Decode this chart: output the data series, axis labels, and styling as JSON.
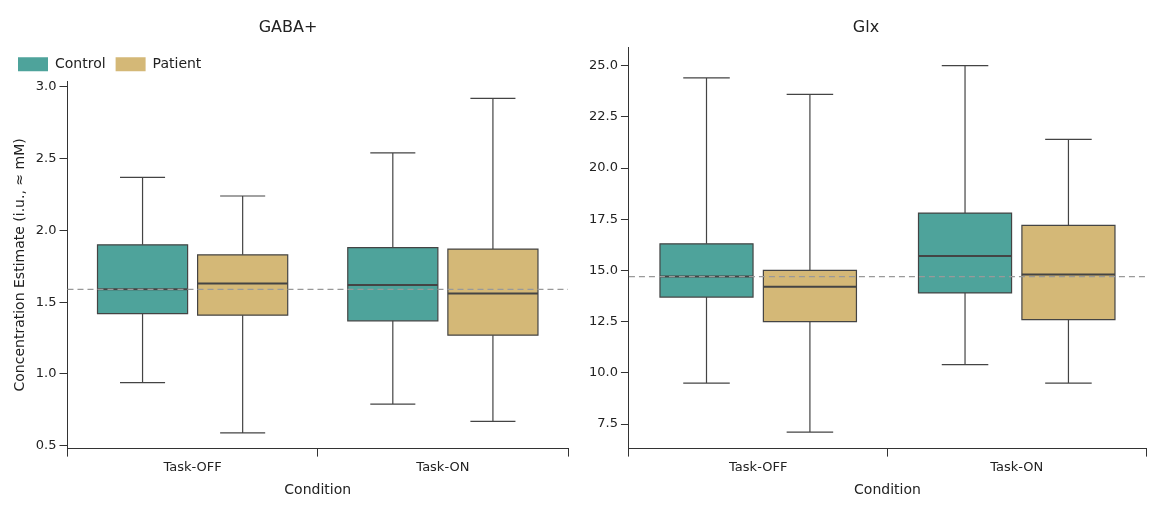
{
  "chart_data": [
    {
      "type": "box",
      "title": "GABA+",
      "xlabel": "Condition",
      "ylabel": "Concentration Estimate (i.u., ≈ mM)",
      "categories": [
        "Task-OFF",
        "Task-ON"
      ],
      "legend": "top left",
      "grid": false,
      "ylim": [
        0.48,
        3.04
      ],
      "yticks": [
        {
          "value": 0.5,
          "label": "0.5"
        },
        {
          "value": 1,
          "label": "1.0"
        },
        {
          "value": 1.5,
          "label": "1.5"
        },
        {
          "value": 2,
          "label": "2.0"
        },
        {
          "value": 2.5,
          "label": "2.5"
        },
        {
          "value": 3,
          "label": "3.0"
        }
      ],
      "series": [
        {
          "name": "Control",
          "color": "#4ea39b",
          "boxes": [
            {
              "low": 0.94,
              "q1": 1.42,
              "median": 1.59,
              "q3": 1.9,
              "high": 2.37
            },
            {
              "low": 0.79,
              "q1": 1.37,
              "median": 1.62,
              "q3": 1.88,
              "high": 2.54
            }
          ]
        },
        {
          "name": "Patient",
          "color": "#d4b877",
          "boxes": [
            {
              "low": 0.59,
              "q1": 1.41,
              "median": 1.63,
              "q3": 1.83,
              "high": 2.24
            },
            {
              "low": 0.67,
              "q1": 1.27,
              "median": 1.56,
              "q3": 1.87,
              "high": 2.92
            }
          ]
        }
      ],
      "ref_lines": [
        {
          "axis": "y",
          "value": 1.59,
          "color": "#999999",
          "line_style": "dashed"
        }
      ]
    },
    {
      "type": "box",
      "title": "Glx",
      "xlabel": "Condition",
      "categories": [
        "Task-OFF",
        "Task-ON"
      ],
      "grid": false,
      "ylim": [
        6.3,
        25.9
      ],
      "yticks": [
        {
          "value": 7.5,
          "label": "7.5"
        },
        {
          "value": 10,
          "label": "10.0"
        },
        {
          "value": 12.5,
          "label": "12.5"
        },
        {
          "value": 15,
          "label": "15.0"
        },
        {
          "value": 17.5,
          "label": "17.5"
        },
        {
          "value": 20,
          "label": "20.0"
        },
        {
          "value": 22.5,
          "label": "22.5"
        },
        {
          "value": 25,
          "label": "25.0"
        }
      ],
      "series": [
        {
          "color": "#4ea39b",
          "boxes": [
            {
              "low": 9.5,
              "q1": 13.7,
              "median": 14.7,
              "q3": 16.3,
              "high": 24.4
            },
            {
              "low": 10.4,
              "q1": 13.9,
              "median": 15.7,
              "q3": 17.8,
              "high": 25.0
            }
          ]
        },
        {
          "color": "#d4b877",
          "boxes": [
            {
              "low": 7.1,
              "q1": 12.5,
              "median": 14.2,
              "q3": 15.0,
              "high": 23.6
            },
            {
              "low": 9.5,
              "q1": 12.6,
              "median": 14.8,
              "q3": 17.2,
              "high": 21.4
            }
          ]
        }
      ],
      "ref_lines": [
        {
          "axis": "y",
          "value": 14.7,
          "color": "#999999",
          "line_style": "dashed"
        }
      ]
    }
  ]
}
